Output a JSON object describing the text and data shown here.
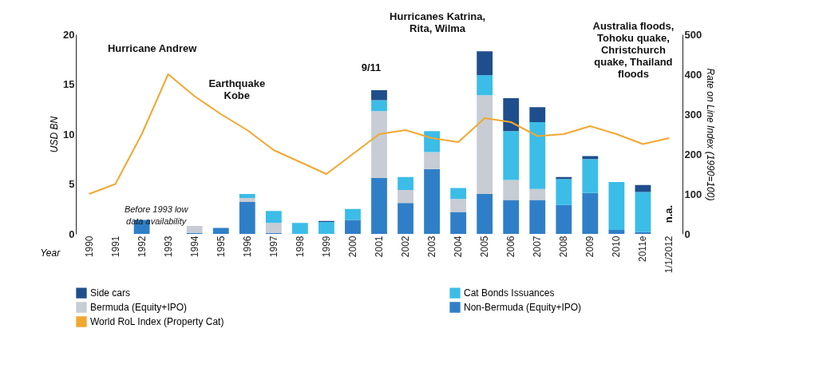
{
  "chart_data": {
    "type": "bar",
    "stacked": true,
    "xlabel": "Year",
    "ylabel": "USD BN",
    "y2label": "Rate on Line Index (1990=100)",
    "categories": [
      "1990",
      "1991",
      "1992",
      "1993",
      "1994",
      "1995",
      "1996",
      "1997",
      "1998",
      "1999",
      "2000",
      "2001",
      "2002",
      "2003",
      "2004",
      "2005",
      "2006",
      "2007",
      "2008",
      "2009",
      "2010",
      "2011e",
      "1/1/2012"
    ],
    "ylim": [
      0,
      20
    ],
    "yticks": [
      0,
      5,
      10,
      15,
      20
    ],
    "y2lim": [
      0,
      500
    ],
    "y2ticks": [
      0,
      100,
      200,
      300,
      400,
      500
    ],
    "grid": false,
    "legend": "bottom",
    "series": [
      {
        "name": "Non-Bermuda (Equity+IPO)",
        "color": "#2f7fc8",
        "values": [
          null,
          null,
          1.4,
          null,
          0.1,
          0.6,
          3.2,
          0.1,
          null,
          null,
          1.4,
          5.6,
          3.1,
          6.5,
          2.2,
          4.0,
          3.4,
          3.4,
          2.9,
          4.1,
          0.4,
          0.2,
          null
        ]
      },
      {
        "name": "Bermuda (Equity+IPO)",
        "color": "#c8ccd4",
        "values": [
          null,
          null,
          null,
          null,
          0.7,
          null,
          0.4,
          1.0,
          null,
          null,
          null,
          6.7,
          1.3,
          1.7,
          1.3,
          9.9,
          2.0,
          1.1,
          null,
          null,
          null,
          null,
          null
        ]
      },
      {
        "name": "Cat Bonds Issuances",
        "color": "#3bbde8",
        "values": [
          null,
          null,
          null,
          null,
          null,
          null,
          0.4,
          1.2,
          1.1,
          1.2,
          1.1,
          1.1,
          1.3,
          2.1,
          1.1,
          2.0,
          4.9,
          6.7,
          2.6,
          3.4,
          4.8,
          4.0,
          null
        ]
      },
      {
        "name": "Side cars",
        "color": "#1f4e8c",
        "values": [
          null,
          null,
          null,
          null,
          null,
          null,
          null,
          null,
          null,
          0.1,
          null,
          1.0,
          null,
          null,
          null,
          2.4,
          3.3,
          1.5,
          0.2,
          0.3,
          null,
          0.7,
          null
        ]
      },
      {
        "name": "World RoL Index (Property Cat)",
        "type": "line",
        "axis": "y2",
        "color": "#f0a830",
        "marker": "none",
        "line_style": "solid",
        "values": [
          100,
          125,
          250,
          400,
          345,
          300,
          260,
          210,
          180,
          150,
          200,
          250,
          260,
          240,
          230,
          290,
          280,
          245,
          250,
          270,
          250,
          225,
          240
        ]
      }
    ],
    "annotations": [
      "Hurricane Andrew",
      "Earthquake Kobe",
      "9/11",
      "Hurricanes Katrina, Rita, Wilma",
      "Australia floods, Tohoku quake, Christchurch quake, Thailand floods",
      "Before 1993 low data availability",
      "n.a."
    ]
  }
}
